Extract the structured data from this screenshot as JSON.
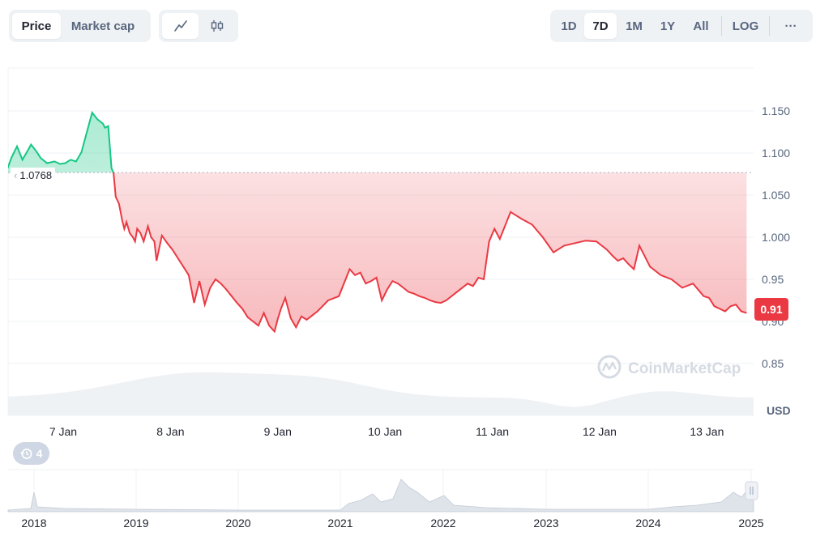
{
  "toolbar": {
    "metric_tabs": [
      {
        "label": "Price",
        "active": true
      },
      {
        "label": "Market cap",
        "active": false
      }
    ],
    "chart_types": [
      {
        "icon": "line-chart-icon",
        "active": true
      },
      {
        "icon": "candlestick-icon",
        "active": false
      }
    ],
    "ranges": [
      {
        "label": "1D",
        "active": false
      },
      {
        "label": "7D",
        "active": true
      },
      {
        "label": "1M",
        "active": false
      },
      {
        "label": "1Y",
        "active": false
      },
      {
        "label": "All",
        "active": false
      }
    ],
    "log_label": "LOG",
    "more_label": "···"
  },
  "watermark": "CoinMarketCap",
  "history_button": {
    "icon": "history-icon",
    "count": "4"
  },
  "reference_label": "1.0768",
  "current_price_label": "0.91",
  "colors": {
    "up": "#16c784",
    "down": "#ea3943",
    "grid": "#eff2f5",
    "axis_text": "#58667e"
  },
  "chart_data": {
    "type": "area",
    "y_ticks": [
      "1.150",
      "1.100",
      "1.050",
      "1.000",
      "0.95",
      "0.90",
      "0.85"
    ],
    "y_unit": "USD",
    "ylim": [
      0.8,
      1.2
    ],
    "x_ticks": [
      "7 Jan",
      "8 Jan",
      "9 Jan",
      "10 Jan",
      "11 Jan",
      "12 Jan",
      "13 Jan"
    ],
    "x_range_days": [
      -0.5,
      6.4
    ],
    "baseline": 1.0768,
    "current": 0.91,
    "series": [
      {
        "x": [
          -0.5,
          -0.45,
          -0.4,
          -0.35,
          -0.3,
          -0.27,
          -0.22,
          -0.18,
          -0.12,
          -0.05,
          0.0,
          0.05,
          0.1,
          0.15,
          0.2,
          0.3,
          0.35,
          0.4,
          0.42,
          0.45,
          0.48,
          0.5,
          0.52,
          0.55,
          0.58,
          0.6,
          0.62,
          0.65,
          0.68,
          0.7,
          0.72,
          0.75,
          0.78,
          0.82,
          0.85,
          0.88,
          0.9,
          0.95,
          1.0,
          1.05,
          1.1,
          1.15,
          1.2,
          1.25,
          1.3,
          1.35,
          1.4,
          1.45,
          1.5,
          1.55,
          1.6,
          1.65,
          1.7,
          1.75,
          1.8,
          1.85,
          1.9,
          1.95,
          2.0,
          2.03,
          2.06,
          2.1,
          2.15,
          2.2,
          2.25,
          2.3,
          2.4,
          2.5,
          2.6,
          2.7,
          2.75,
          2.8,
          2.85,
          2.9,
          2.95,
          3.0,
          3.05,
          3.1,
          3.15,
          3.2,
          3.25,
          3.3,
          3.35,
          3.4,
          3.45,
          3.5,
          3.55,
          3.6,
          3.7,
          3.8,
          3.85,
          3.9,
          3.95,
          4.0,
          4.05,
          4.1,
          4.2,
          4.3,
          4.4,
          4.5,
          4.6,
          4.7,
          4.8,
          4.9,
          5.0,
          5.05,
          5.1,
          5.15,
          5.2,
          5.25,
          5.3,
          5.35,
          5.4,
          5.5,
          5.6,
          5.7,
          5.8,
          5.9,
          6.0,
          6.05,
          6.1,
          6.15,
          6.2,
          6.25,
          6.3,
          6.35,
          6.4
        ],
        "values": [
          1.078,
          1.095,
          1.108,
          1.092,
          1.103,
          1.11,
          1.102,
          1.094,
          1.088,
          1.09,
          1.087,
          1.088,
          1.092,
          1.09,
          1.101,
          1.148,
          1.14,
          1.135,
          1.13,
          1.132,
          1.082,
          1.076,
          1.048,
          1.04,
          1.02,
          1.01,
          1.018,
          1.005,
          1.0,
          0.995,
          1.01,
          1.005,
          0.995,
          1.013,
          1.0,
          0.995,
          0.972,
          1.002,
          0.993,
          0.985,
          0.975,
          0.965,
          0.955,
          0.922,
          0.948,
          0.92,
          0.94,
          0.95,
          0.945,
          0.938,
          0.93,
          0.922,
          0.915,
          0.905,
          0.9,
          0.895,
          0.91,
          0.895,
          0.888,
          0.903,
          0.915,
          0.928,
          0.904,
          0.893,
          0.906,
          0.902,
          0.912,
          0.925,
          0.93,
          0.962,
          0.955,
          0.958,
          0.945,
          0.948,
          0.952,
          0.925,
          0.938,
          0.948,
          0.945,
          0.94,
          0.935,
          0.933,
          0.93,
          0.928,
          0.925,
          0.923,
          0.922,
          0.925,
          0.935,
          0.945,
          0.942,
          0.952,
          0.95,
          0.995,
          1.01,
          0.998,
          1.03,
          1.022,
          1.015,
          1.0,
          0.982,
          0.99,
          0.993,
          0.996,
          0.995,
          0.99,
          0.985,
          0.978,
          0.972,
          0.975,
          0.968,
          0.962,
          0.99,
          0.965,
          0.955,
          0.95,
          0.94,
          0.945,
          0.93,
          0.928,
          0.918,
          0.915,
          0.912,
          0.918,
          0.92,
          0.912,
          0.91
        ]
      }
    ]
  },
  "overview_data": {
    "x_ticks": [
      "2018",
      "2019",
      "2020",
      "2021",
      "2022",
      "2023",
      "2024",
      "2025"
    ]
  }
}
